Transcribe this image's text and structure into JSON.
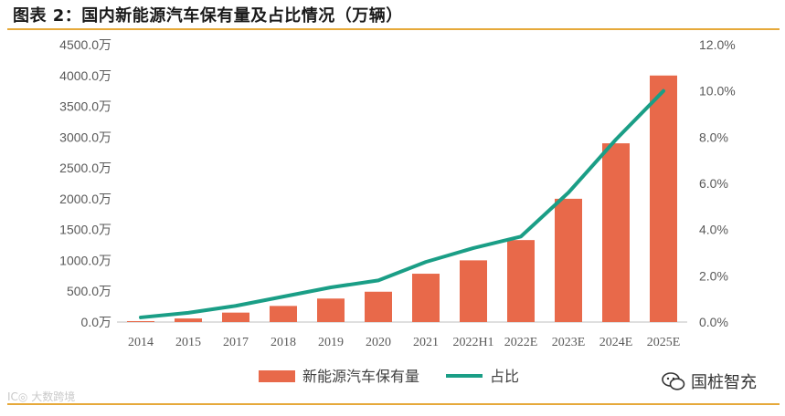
{
  "title": "图表 2：国内新能源汽车保有量及占比情况（万辆）",
  "watermark_left": "IC◎ 大数跨境",
  "watermark_right": "国桩智充",
  "colors": {
    "bar": "#e8694a",
    "line": "#1a9e86",
    "rule": "#e6a93a",
    "axis_text": "#595959"
  },
  "chart_data": {
    "type": "bar",
    "title": "国内新能源汽车保有量及占比情况（万辆）",
    "categories": [
      "2014",
      "2015",
      "2017",
      "2018",
      "2019",
      "2020",
      "2021",
      "2022H1",
      "2022E",
      "2023E",
      "2024E",
      "2025E"
    ],
    "series": [
      {
        "name": "新能源汽车保有量",
        "type": "bar",
        "axis": "left",
        "values": [
          15,
          58,
          153,
          261,
          381,
          492,
          784,
          1001,
          1330,
          2000,
          2900,
          4000
        ]
      },
      {
        "name": "占比",
        "type": "line",
        "axis": "right",
        "values": [
          0.2,
          0.4,
          0.7,
          1.1,
          1.5,
          1.8,
          2.6,
          3.2,
          3.7,
          5.6,
          7.9,
          10.0
        ]
      }
    ],
    "ylim_left": [
      0,
      4500
    ],
    "ylim_right": [
      0,
      12
    ],
    "left_ticks": [
      "0.0万",
      "500.0万",
      "1000.0万",
      "1500.0万",
      "2000.0万",
      "2500.0万",
      "3000.0万",
      "3500.0万",
      "4000.0万",
      "4500.0万"
    ],
    "right_ticks": [
      "0.0%",
      "2.0%",
      "4.0%",
      "6.0%",
      "8.0%",
      "10.0%",
      "12.0%"
    ],
    "legend": [
      "新能源汽车保有量",
      "占比"
    ],
    "legend_position": "bottom"
  }
}
